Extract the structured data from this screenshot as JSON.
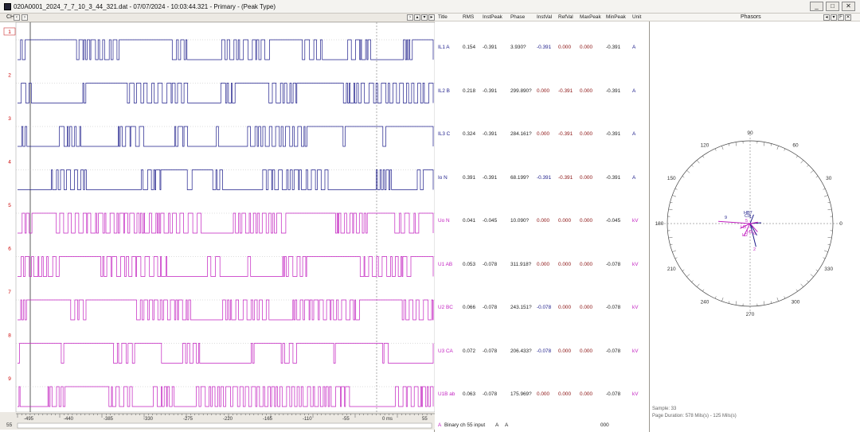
{
  "window": {
    "title": "020A0001_2024_7_7_10_3_44_321.dat - 07/07/2024 - 10:03:44.321 - Primary - (Peak Type)",
    "buttons": [
      "_",
      "□",
      "✕"
    ]
  },
  "wave_panel": {
    "ch_label": "CH",
    "markers": [
      "1",
      "2",
      "3",
      "4",
      "5",
      "6",
      "7",
      "8",
      "9"
    ],
    "bottom_page": "55",
    "time_ticks": [
      "-495",
      "-440",
      "-385",
      "-330",
      "-275",
      "-220",
      "-165",
      "-110",
      "-55",
      "0 ms",
      "55"
    ]
  },
  "table": {
    "columns": [
      "Title",
      "RMS",
      "InstPeak",
      "Phase",
      "InstVal",
      "RefVal",
      "MaxPeak",
      "MinPeak",
      "Unit"
    ],
    "rows": [
      {
        "title": "IL1 A",
        "rms": "0.154",
        "instpeak": "-0.391",
        "phase": "3.930?",
        "instval": "-0.391",
        "refval": "0.000",
        "maxpeak": "0.000",
        "minpeak": "-0.391",
        "unit": "A"
      },
      {
        "title": "IL2 B",
        "rms": "0.218",
        "instpeak": "-0.391",
        "phase": "299.890?",
        "instval": "0.000",
        "refval": "-0.391",
        "maxpeak": "0.000",
        "minpeak": "-0.391",
        "unit": "A"
      },
      {
        "title": "IL3 C",
        "rms": "0.324",
        "instpeak": "-0.391",
        "phase": "284.161?",
        "instval": "0.000",
        "refval": "-0.391",
        "maxpeak": "0.000",
        "minpeak": "-0.391",
        "unit": "A"
      },
      {
        "title": "Io N",
        "rms": "0.391",
        "instpeak": "-0.391",
        "phase": "68.199?",
        "instval": "-0.391",
        "refval": "-0.391",
        "maxpeak": "0.000",
        "minpeak": "-0.391",
        "unit": "A"
      },
      {
        "title": "Uo N",
        "rms": "0.041",
        "instpeak": "-0.045",
        "phase": "10.090?",
        "instval": "0.000",
        "refval": "0.000",
        "maxpeak": "0.000",
        "minpeak": "-0.045",
        "unit": "kV"
      },
      {
        "title": "U1 AB",
        "rms": "0.053",
        "instpeak": "-0.078",
        "phase": "311.918?",
        "instval": "0.000",
        "refval": "0.000",
        "maxpeak": "0.000",
        "minpeak": "-0.078",
        "unit": "kV"
      },
      {
        "title": "U2 BC",
        "rms": "0.066",
        "instpeak": "-0.078",
        "phase": "243.151?",
        "instval": "-0.078",
        "refval": "0.000",
        "maxpeak": "0.000",
        "minpeak": "-0.078",
        "unit": "kV"
      },
      {
        "title": "U3 CA",
        "rms": "0.072",
        "instpeak": "-0.078",
        "phase": "206.433?",
        "instval": "-0.078",
        "refval": "0.000",
        "maxpeak": "0.000",
        "minpeak": "-0.078",
        "unit": "kV"
      },
      {
        "title": "U1B ab",
        "rms": "0.063",
        "instpeak": "-0.078",
        "phase": "175.969?",
        "instval": "0.000",
        "refval": "0.000",
        "maxpeak": "0.000",
        "minpeak": "-0.078",
        "unit": "kV"
      }
    ],
    "status": {
      "letter": "A",
      "text": "Binary ch 55 input",
      "a1": "A",
      "a2": "A",
      "value": "000"
    }
  },
  "phasor_panel": {
    "title": "Phasors",
    "angles": [
      "90",
      "60",
      "30",
      "0",
      "330",
      "300",
      "270",
      "240",
      "210",
      "180",
      "150",
      "120"
    ],
    "labels": [
      "HB7",
      "C9",
      "1",
      "9",
      "5",
      "H5",
      "H2",
      "H3",
      "6",
      "2"
    ],
    "sample_text": "Sample: 33",
    "duration_text": "Page Duration: 578 Mils(s) - 125 Mils(s)",
    "colors": {
      "current": "#1c1c8a",
      "voltage": "#c21fc0"
    }
  }
}
